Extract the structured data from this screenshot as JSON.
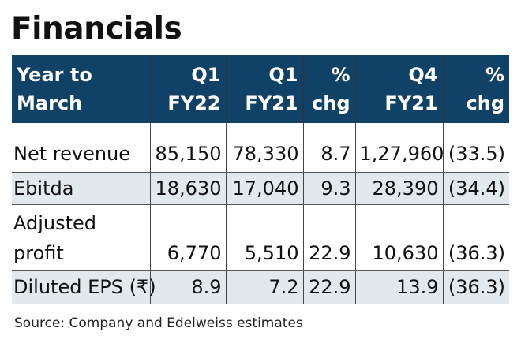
{
  "title": "Financials",
  "chart_data": {
    "type": "table",
    "title": "Financials",
    "columns": [
      [
        "Year to",
        "March"
      ],
      [
        "Q1",
        "FY22"
      ],
      [
        "Q1",
        "FY21"
      ],
      [
        "%",
        "chg"
      ],
      [
        "Q4",
        "FY21"
      ],
      [
        "%",
        "chg"
      ]
    ],
    "rows": [
      {
        "label": "Net revenue",
        "values": [
          "85,150",
          "78,330",
          "8.7",
          "1,27,960",
          "(33.5)"
        ]
      },
      {
        "label": "Ebitda",
        "values": [
          "18,630",
          "17,040",
          "9.3",
          "28,390",
          "(34.4)"
        ]
      },
      {
        "label": "Adjusted profit",
        "values": [
          "6,770",
          "5,510",
          "22.9",
          "10,630",
          "(36.3)"
        ]
      },
      {
        "label": "Diluted EPS (₹)",
        "values": [
          "8.9",
          "7.2",
          "22.9",
          "13.9",
          "(36.3)"
        ]
      }
    ],
    "source": "Source: Company and Edelweiss estimates"
  },
  "colors": {
    "header_bg": "#0f4266",
    "header_text": "#ffffff",
    "alt_row_bg": "#e2e9ec"
  }
}
